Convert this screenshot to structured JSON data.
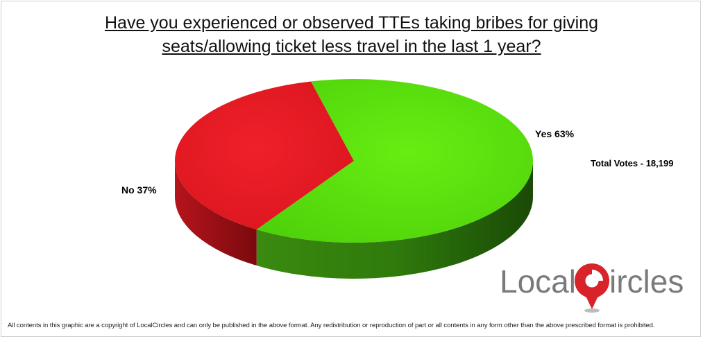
{
  "chart_data": {
    "type": "pie",
    "title": "Have you experienced or observed TTEs taking bribes for giving seats/allowing ticket less travel in the last 1 year?",
    "title_lines": [
      "Have you experienced or observed TTEs taking bribes for giving",
      "seats/allowing ticket less travel in the last 1 year?"
    ],
    "slices": [
      {
        "label": "Yes 63%",
        "value": 63,
        "color": "#5fe30f"
      },
      {
        "label": "No 37%",
        "value": 37,
        "color": "#ee1c25"
      }
    ]
  },
  "total_votes": "Total Votes - 18,199",
  "logo": {
    "text_before": "Local",
    "text_after": "ircles",
    "pin_color": "#d8232a"
  },
  "footer": "All contents in this graphic are a copyright of LocalCircles and can only be published in the above format. Any redistribution or reproduction of part or all contents in any form other than the above prescribed format is prohibited."
}
